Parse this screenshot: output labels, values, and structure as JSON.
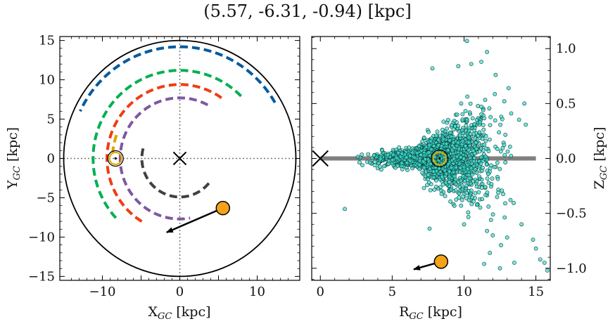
{
  "figure": {
    "title": "(5.57, -6.31, -0.94) [kpc]"
  },
  "chart_data": [
    {
      "type": "line",
      "panel": "xy",
      "xlabel": "X",
      "xlabel_sub": "GC",
      "xlabel_unit": " [kpc]",
      "ylabel": "Y",
      "ylabel_sub": "GC",
      "ylabel_unit": " [kpc]",
      "xlim": [
        -15.5,
        15.5
      ],
      "ylim": [
        -15.5,
        15.5
      ],
      "xticks": [
        -10,
        0,
        10
      ],
      "xtick_labels": [
        "−10",
        "0",
        "10"
      ],
      "yticks": [
        -15,
        -10,
        -5,
        0,
        5,
        10,
        15
      ],
      "ytick_labels": [
        "−15",
        "−10",
        "−5",
        "0",
        "5",
        "10",
        "15"
      ],
      "galaxy_edge_radius": 15,
      "galactic_center": [
        0,
        0
      ],
      "sun": [
        -8.3,
        0
      ],
      "star": {
        "x": 5.57,
        "y": -6.31
      },
      "velocity_arrow": {
        "from": [
          5.57,
          -6.31
        ],
        "to": [
          -1.7,
          -9.4
        ]
      },
      "spiral_arms": [
        {
          "color": "#e69f00",
          "radius": 8.7,
          "start_deg": 160,
          "end_deg": 175
        },
        {
          "color": "#005aa0",
          "radius": 14.2,
          "start_deg": 30,
          "end_deg": 155
        },
        {
          "color": "#00b050",
          "radius": 11.2,
          "start_deg": 45,
          "end_deg": 223
        },
        {
          "color": "#f03c14",
          "radius": 9.4,
          "start_deg": 55,
          "end_deg": 240
        },
        {
          "color": "#7e57a2",
          "radius": 7.7,
          "start_deg": 62,
          "end_deg": 280
        },
        {
          "color": "#404040",
          "radius": 4.9,
          "start_deg": 165,
          "end_deg": 320
        }
      ]
    },
    {
      "type": "scatter",
      "panel": "rz",
      "xlabel": "R",
      "xlabel_sub": "GC",
      "xlabel_unit": " [kpc]",
      "ylabel": "Z",
      "ylabel_sub": "GC",
      "ylabel_unit": " [kpc]",
      "xlim": [
        -0.6,
        16.0
      ],
      "ylim": [
        -1.11,
        1.11
      ],
      "xticks": [
        0,
        5,
        10,
        15
      ],
      "xtick_labels": [
        "0",
        "5",
        "10",
        "15"
      ],
      "yticks": [
        -1.0,
        -0.5,
        0.0,
        0.5,
        1.0
      ],
      "ytick_labels": [
        "−1.0",
        "−0.5",
        "0.0",
        "0.5",
        "1.0"
      ],
      "disk_line": {
        "x": [
          0,
          15
        ],
        "y": 0
      },
      "galactic_center": [
        0,
        0
      ],
      "sun": [
        8.3,
        0
      ],
      "star": {
        "x": 8.4,
        "y": -0.94
      },
      "velocity_arrow": {
        "from": [
          8.4,
          -0.94
        ],
        "to": [
          6.5,
          -1.01
        ]
      },
      "scatter_color": "#40e0d0",
      "scatter": {
        "n_points": 1800,
        "x_range": [
          2,
          16
        ],
        "core_center": [
          8.3,
          0.0
        ],
        "note": "dense cluster of stars around the Sun, vertical spread growing with R"
      },
      "scatter_outliers": [
        [
          10.2,
          1.07
        ],
        [
          11.6,
          0.97
        ],
        [
          10.5,
          0.86
        ],
        [
          11.2,
          0.88
        ],
        [
          7.8,
          0.82
        ],
        [
          12.2,
          0.76
        ],
        [
          9.6,
          0.84
        ],
        [
          13.1,
          0.64
        ],
        [
          14.2,
          0.5
        ],
        [
          12.8,
          0.52
        ],
        [
          1.7,
          -0.46
        ],
        [
          7.6,
          -0.64
        ],
        [
          11.6,
          -0.66
        ],
        [
          12.0,
          -0.7
        ],
        [
          11.8,
          -0.86
        ],
        [
          14.8,
          -0.74
        ],
        [
          15.0,
          -0.82
        ],
        [
          15.3,
          -0.92
        ],
        [
          15.6,
          -0.95
        ],
        [
          15.8,
          -1.02
        ],
        [
          12.5,
          -1.0
        ],
        [
          13.5,
          -0.95
        ],
        [
          11.4,
          -0.96
        ],
        [
          13.0,
          -0.72
        ],
        [
          14.0,
          -0.6
        ],
        [
          10.0,
          -0.6
        ]
      ]
    }
  ],
  "colors": {
    "star_fill": "#f5a21b",
    "sun_color": "#e0a800",
    "axes": "#000000",
    "grid_dotted": "#777777",
    "disk_line": "#808080"
  }
}
